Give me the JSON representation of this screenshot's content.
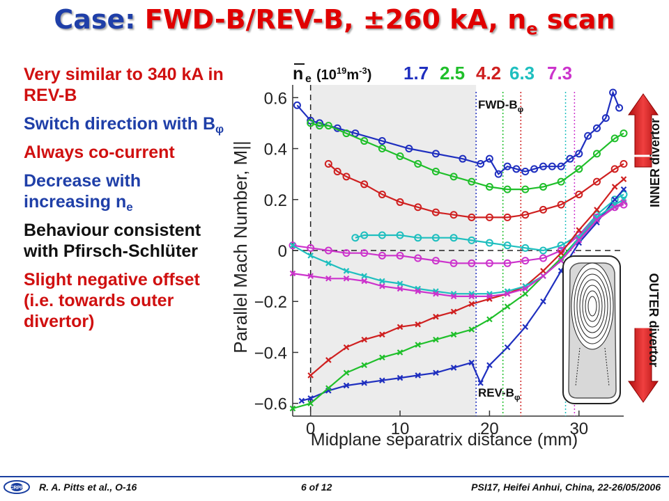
{
  "title": {
    "prefix": "Case:",
    "main": "FWD-B/REV-B, ±260 kA, n",
    "sub": "e",
    "suffix": " scan"
  },
  "bullets": [
    {
      "text": "Very similar to 340 kA in REV-B",
      "sub": "",
      "color": "#d01010"
    },
    {
      "text": "Switch direction with B",
      "sub": "φ",
      "color": "#1f3fa8"
    },
    {
      "text": "Always co-current",
      "sub": "",
      "color": "#d01010"
    },
    {
      "text": "Decrease with increasing n",
      "sub": "e",
      "color": "#1f3fa8"
    },
    {
      "text": "Behaviour consistent with Pfirsch-Schlüter",
      "sub": "",
      "color": "#111111"
    },
    {
      "text": "Slight negative offset (i.e. towards outer divertor)",
      "sub": "",
      "color": "#d01010"
    }
  ],
  "chart_data": {
    "type": "line",
    "xlabel": "Midplane separatrix distance (mm)",
    "ylabel": "Parallel Mach Number, M||",
    "xlim": [
      -2,
      35
    ],
    "ylim": [
      -0.65,
      0.65
    ],
    "xticks": [
      0,
      10,
      20,
      30
    ],
    "yticks": [
      -0.6,
      -0.4,
      -0.2,
      0,
      0.2,
      0.4,
      0.6
    ],
    "shaded_region": [
      0,
      18.5
    ],
    "legend_label": "n",
    "legend_sub": "e",
    "legend_unit": "(10",
    "legend_unit_exp": "19",
    "legend_unit_end": "m",
    "legend_unit_exp2": "-3",
    "legend_unit_close": ")",
    "annotation_fwd": "FWD-B",
    "annotation_rev": "REV-B",
    "annotation_sub": "φ",
    "densities": [
      {
        "label": "1.7",
        "color": "#1f2fbf",
        "sep_x": 18.5
      },
      {
        "label": "2.5",
        "color": "#1fbf2a",
        "sep_x": 21.5
      },
      {
        "label": "4.2",
        "color": "#cf2020",
        "sep_x": 23.5
      },
      {
        "label": "6.3",
        "color": "#1fbfbf",
        "sep_x": 28.5
      },
      {
        "label": "7.3",
        "color": "#cc33cc",
        "sep_x": 29.5
      }
    ],
    "series": [
      {
        "group": "FWD-B",
        "color": "#1f2fbf",
        "marker": "o",
        "x": [
          -1.5,
          0,
          1,
          3,
          5,
          8,
          11,
          14,
          17,
          19,
          20,
          21,
          22,
          23,
          24,
          25,
          26,
          27,
          28,
          29,
          30,
          31,
          32,
          33,
          33.8,
          34.5
        ],
        "y": [
          0.57,
          0.51,
          0.5,
          0.48,
          0.46,
          0.43,
          0.4,
          0.38,
          0.36,
          0.34,
          0.36,
          0.3,
          0.33,
          0.32,
          0.31,
          0.32,
          0.33,
          0.33,
          0.33,
          0.36,
          0.38,
          0.45,
          0.48,
          0.52,
          0.62,
          0.56
        ]
      },
      {
        "group": "FWD-B",
        "color": "#1fbf2a",
        "marker": "o",
        "x": [
          0,
          1,
          2,
          4,
          6,
          8,
          10,
          12,
          14,
          16,
          18,
          20,
          22,
          24,
          26,
          28,
          30,
          32,
          34,
          35
        ],
        "y": [
          0.5,
          0.49,
          0.49,
          0.46,
          0.43,
          0.4,
          0.37,
          0.34,
          0.31,
          0.29,
          0.27,
          0.25,
          0.24,
          0.24,
          0.25,
          0.27,
          0.32,
          0.38,
          0.44,
          0.46
        ]
      },
      {
        "group": "FWD-B",
        "color": "#cf2020",
        "marker": "o",
        "x": [
          2,
          3,
          4,
          6,
          8,
          10,
          12,
          14,
          16,
          18,
          20,
          22,
          24,
          26,
          28,
          30,
          32,
          34,
          35
        ],
        "y": [
          0.34,
          0.31,
          0.29,
          0.26,
          0.22,
          0.19,
          0.17,
          0.15,
          0.14,
          0.13,
          0.13,
          0.13,
          0.14,
          0.16,
          0.18,
          0.22,
          0.27,
          0.32,
          0.34
        ]
      },
      {
        "group": "FWD-B",
        "color": "#1fbfbf",
        "marker": "o",
        "x": [
          5,
          6,
          8,
          10,
          12,
          14,
          16,
          18,
          20,
          22,
          24,
          26,
          28,
          30,
          32,
          34,
          35
        ],
        "y": [
          0.05,
          0.06,
          0.06,
          0.06,
          0.05,
          0.05,
          0.05,
          0.04,
          0.03,
          0.02,
          0.01,
          0.0,
          0.02,
          0.06,
          0.14,
          0.2,
          0.22
        ]
      },
      {
        "group": "FWD-B",
        "color": "#cc33cc",
        "marker": "o",
        "x": [
          -2,
          0,
          2,
          4,
          6,
          8,
          10,
          12,
          14,
          16,
          18,
          20,
          22,
          24,
          26,
          28,
          30,
          32,
          34,
          35
        ],
        "y": [
          0.02,
          0.01,
          0.0,
          -0.01,
          -0.01,
          -0.02,
          -0.02,
          -0.03,
          -0.04,
          -0.05,
          -0.05,
          -0.05,
          -0.05,
          -0.04,
          -0.03,
          0.0,
          0.06,
          0.13,
          0.17,
          0.18
        ]
      },
      {
        "group": "REV-B",
        "color": "#1f2fbf",
        "marker": "x",
        "x": [
          -1,
          0,
          2,
          4,
          6,
          8,
          10,
          12,
          14,
          16,
          18,
          19,
          20,
          22,
          24,
          26,
          28,
          30,
          32,
          34,
          35
        ],
        "y": [
          -0.59,
          -0.58,
          -0.55,
          -0.53,
          -0.52,
          -0.51,
          -0.5,
          -0.49,
          -0.48,
          -0.46,
          -0.44,
          -0.52,
          -0.45,
          -0.38,
          -0.3,
          -0.2,
          -0.08,
          0.03,
          0.11,
          0.2,
          0.24
        ]
      },
      {
        "group": "REV-B",
        "color": "#1fbf2a",
        "marker": "x",
        "x": [
          -2,
          0,
          2,
          4,
          6,
          8,
          10,
          12,
          14,
          16,
          18,
          20,
          22,
          24,
          26,
          28,
          30,
          32,
          34,
          35
        ],
        "y": [
          -0.62,
          -0.6,
          -0.54,
          -0.48,
          -0.45,
          -0.42,
          -0.4,
          -0.37,
          -0.35,
          -0.33,
          -0.31,
          -0.27,
          -0.22,
          -0.17,
          -0.1,
          -0.03,
          0.05,
          0.12,
          0.17,
          0.19
        ]
      },
      {
        "group": "REV-B",
        "color": "#cf2020",
        "marker": "x",
        "x": [
          0,
          2,
          4,
          6,
          8,
          10,
          12,
          14,
          16,
          18,
          20,
          22,
          24,
          26,
          28,
          30,
          32,
          34,
          35
        ],
        "y": [
          -0.49,
          -0.43,
          -0.38,
          -0.35,
          -0.33,
          -0.3,
          -0.29,
          -0.26,
          -0.24,
          -0.21,
          -0.19,
          -0.17,
          -0.14,
          -0.08,
          -0.01,
          0.08,
          0.16,
          0.25,
          0.28
        ]
      },
      {
        "group": "REV-B",
        "color": "#1fbfbf",
        "marker": "x",
        "x": [
          -2,
          0,
          2,
          4,
          6,
          8,
          10,
          12,
          14,
          16,
          18,
          20,
          22,
          24,
          26,
          28,
          30,
          32,
          34,
          35
        ],
        "y": [
          0.02,
          -0.02,
          -0.05,
          -0.08,
          -0.1,
          -0.12,
          -0.13,
          -0.15,
          -0.16,
          -0.17,
          -0.17,
          -0.17,
          -0.16,
          -0.14,
          -0.1,
          -0.04,
          0.05,
          0.13,
          0.18,
          0.2
        ]
      },
      {
        "group": "REV-B",
        "color": "#cc33cc",
        "marker": "x",
        "x": [
          -2,
          0,
          2,
          4,
          6,
          8,
          10,
          12,
          14,
          16,
          18,
          20,
          22,
          24,
          26,
          28,
          30,
          32,
          34,
          35
        ],
        "y": [
          -0.09,
          -0.1,
          -0.11,
          -0.11,
          -0.12,
          -0.14,
          -0.15,
          -0.16,
          -0.17,
          -0.18,
          -0.18,
          -0.18,
          -0.17,
          -0.15,
          -0.1,
          -0.04,
          0.04,
          0.12,
          0.17,
          0.19
        ]
      }
    ]
  },
  "right_labels": {
    "inner": "INNER divertor",
    "outer": "OUTER divertor"
  },
  "footer": {
    "left": "R. A. Pitts et al., O-16",
    "center": "6 of 12",
    "right": "PSI17, Heifei Anhui, China, 22-26/05/2006"
  },
  "colors": {
    "arrow": "#d42020",
    "footer_line": "#1a3fa0"
  }
}
